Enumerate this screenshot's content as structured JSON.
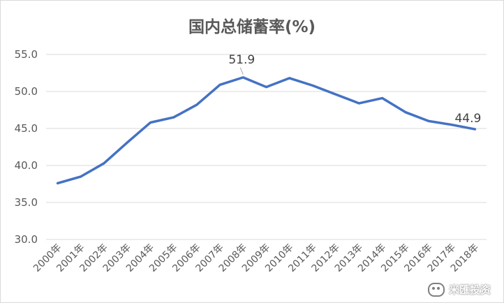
{
  "chart_data": {
    "type": "line",
    "title": "国内总储蓄率(%)",
    "xlabel": "",
    "ylabel": "",
    "categories": [
      "2000年",
      "2001年",
      "2002年",
      "2003年",
      "2004年",
      "2005年",
      "2006年",
      "2007年",
      "2008年",
      "2009年",
      "2010年",
      "2011年",
      "2012年",
      "2013年",
      "2014年",
      "2015年",
      "2016年",
      "2017年",
      "2018年"
    ],
    "series": [
      {
        "values": [
          37.6,
          38.5,
          40.3,
          43.1,
          45.8,
          46.5,
          48.2,
          50.9,
          51.9,
          50.6,
          51.8,
          50.8,
          49.6,
          48.4,
          49.1,
          47.2,
          46.0,
          45.5,
          44.9
        ],
        "color": "#4472c4"
      }
    ],
    "ylim": [
      30,
      55
    ],
    "yticks": [
      "30.0",
      "35.0",
      "40.0",
      "45.0",
      "50.0",
      "55.0"
    ],
    "annotations": [
      {
        "index": 8,
        "text": "51.9"
      },
      {
        "index": 18,
        "text": "44.9"
      }
    ],
    "grid": true,
    "legend": "none"
  },
  "watermark": {
    "text": "米匯投资",
    "icon": "wechat-icon"
  }
}
